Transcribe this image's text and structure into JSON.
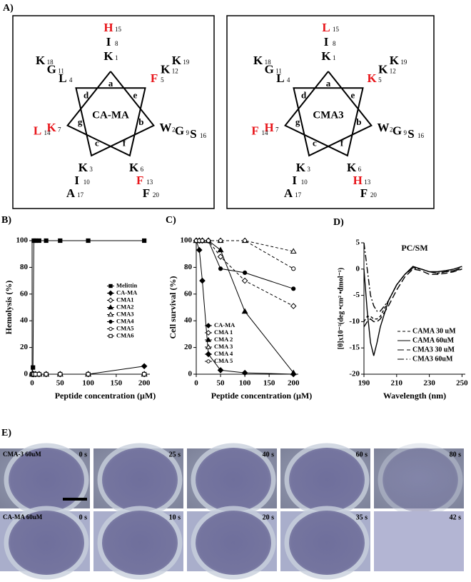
{
  "panel_labels": {
    "A": "A)",
    "E": "E)"
  },
  "wheels": [
    {
      "center_label": "CA-MA",
      "positions": [
        {
          "heptad": "a",
          "residues": [
            {
              "letter": "K",
              "number": 1,
              "color": "#000000"
            },
            {
              "letter": "I",
              "number": 8,
              "color": "#000000"
            },
            {
              "letter": "H",
              "number": 15,
              "color": "#e8161b"
            }
          ]
        },
        {
          "heptad": "e",
          "residues": [
            {
              "letter": "F",
              "number": 5,
              "color": "#e8161b"
            },
            {
              "letter": "K",
              "number": 12,
              "color": "#000000"
            },
            {
              "letter": "K",
              "number": 19,
              "color": "#000000"
            }
          ]
        },
        {
          "heptad": "b",
          "residues": [
            {
              "letter": "W",
              "number": 2,
              "color": "#000000"
            },
            {
              "letter": "G",
              "number": 9,
              "color": "#000000"
            },
            {
              "letter": "S",
              "number": 16,
              "color": "#000000"
            }
          ]
        },
        {
          "heptad": "f",
          "residues": [
            {
              "letter": "K",
              "number": 6,
              "color": "#000000"
            },
            {
              "letter": "F",
              "number": 13,
              "color": "#e8161b"
            },
            {
              "letter": "F",
              "number": 20,
              "color": "#000000"
            }
          ]
        },
        {
          "heptad": "c",
          "residues": [
            {
              "letter": "K",
              "number": 3,
              "color": "#000000"
            },
            {
              "letter": "I",
              "number": 10,
              "color": "#000000"
            },
            {
              "letter": "A",
              "number": 17,
              "color": "#000000"
            }
          ]
        },
        {
          "heptad": "g",
          "residues": [
            {
              "letter": "K",
              "number": 7,
              "color": "#e8161b"
            },
            {
              "letter": "L",
              "number": 14,
              "color": "#e8161b"
            }
          ]
        },
        {
          "heptad": "d",
          "residues": [
            {
              "letter": "L",
              "number": 4,
              "color": "#000000"
            },
            {
              "letter": "G",
              "number": 11,
              "color": "#000000"
            },
            {
              "letter": "K",
              "number": 18,
              "color": "#000000"
            }
          ]
        }
      ]
    },
    {
      "center_label": "CMA3",
      "positions": [
        {
          "heptad": "a",
          "residues": [
            {
              "letter": "K",
              "number": 1,
              "color": "#000000"
            },
            {
              "letter": "I",
              "number": 8,
              "color": "#000000"
            },
            {
              "letter": "L",
              "number": 15,
              "color": "#e8161b"
            }
          ]
        },
        {
          "heptad": "e",
          "residues": [
            {
              "letter": "K",
              "number": 5,
              "color": "#e8161b"
            },
            {
              "letter": "K",
              "number": 12,
              "color": "#000000"
            },
            {
              "letter": "K",
              "number": 19,
              "color": "#000000"
            }
          ]
        },
        {
          "heptad": "b",
          "residues": [
            {
              "letter": "W",
              "number": 2,
              "color": "#000000"
            },
            {
              "letter": "G",
              "number": 9,
              "color": "#000000"
            },
            {
              "letter": "S",
              "number": 16,
              "color": "#000000"
            }
          ]
        },
        {
          "heptad": "f",
          "residues": [
            {
              "letter": "K",
              "number": 6,
              "color": "#000000"
            },
            {
              "letter": "H",
              "number": 13,
              "color": "#e8161b"
            },
            {
              "letter": "F",
              "number": 20,
              "color": "#000000"
            }
          ]
        },
        {
          "heptad": "c",
          "residues": [
            {
              "letter": "K",
              "number": 3,
              "color": "#000000"
            },
            {
              "letter": "I",
              "number": 10,
              "color": "#000000"
            },
            {
              "letter": "A",
              "number": 17,
              "color": "#000000"
            }
          ]
        },
        {
          "heptad": "g",
          "residues": [
            {
              "letter": "H",
              "number": 7,
              "color": "#e8161b"
            },
            {
              "letter": "F",
              "number": 14,
              "color": "#e8161b"
            }
          ]
        },
        {
          "heptad": "d",
          "residues": [
            {
              "letter": "L",
              "number": 4,
              "color": "#000000"
            },
            {
              "letter": "G",
              "number": 11,
              "color": "#000000"
            },
            {
              "letter": "K",
              "number": 18,
              "color": "#000000"
            }
          ]
        }
      ]
    }
  ],
  "chart_data": [
    {
      "type": "line",
      "panel_label": "B)",
      "ylabel": "Hemolysis (%)",
      "xlabel": "Peptide concentration (µM)",
      "x": [
        0,
        1.5,
        3,
        6,
        12.5,
        25,
        50,
        100,
        200
      ],
      "xlim": [
        0,
        210
      ],
      "xticks": [
        0,
        50,
        100,
        150,
        200
      ],
      "ylim": [
        0,
        100
      ],
      "yticks": [
        0,
        20,
        40,
        60,
        80,
        100
      ],
      "legend": "center right",
      "series": [
        {
          "name": "Melittin",
          "color": "#000000",
          "marker": "square",
          "filled": true,
          "dash": "solid",
          "values": [
            0,
            5,
            100,
            100,
            100,
            100,
            100,
            100,
            100
          ]
        },
        {
          "name": "CA-MA",
          "color": "#000000",
          "marker": "diamond",
          "filled": true,
          "dash": "solid",
          "values": [
            0,
            0,
            0,
            0,
            0,
            0,
            0,
            0,
            6
          ]
        },
        {
          "name": "CMA1",
          "color": "#000000",
          "marker": "diamond",
          "filled": false,
          "dash": "solid",
          "values": [
            0,
            0,
            0,
            0,
            0,
            0,
            0,
            0,
            0
          ]
        },
        {
          "name": "CMA2",
          "color": "#000000",
          "marker": "triangle",
          "filled": true,
          "dash": "solid",
          "values": [
            0,
            0,
            0,
            0,
            0,
            0,
            0,
            0,
            0
          ]
        },
        {
          "name": "CMA3",
          "color": "#000000",
          "marker": "triangle",
          "filled": false,
          "dash": "solid",
          "values": [
            0,
            0,
            0,
            0,
            0,
            0,
            0,
            0,
            0
          ]
        },
        {
          "name": "CMA4",
          "color": "#000000",
          "marker": "circle",
          "filled": true,
          "dash": "solid",
          "values": [
            0,
            0,
            0,
            0,
            0,
            0,
            0,
            0,
            0
          ]
        },
        {
          "name": "CMA5",
          "color": "#000000",
          "marker": "circle",
          "filled": false,
          "dash": "solid",
          "values": [
            0,
            0,
            0,
            0,
            0,
            0,
            0,
            0,
            0
          ]
        },
        {
          "name": "CMA6",
          "color": "#000000",
          "marker": "square",
          "filled": false,
          "dash": "solid",
          "values": [
            0,
            0,
            0,
            0,
            0,
            0,
            0,
            0,
            0
          ]
        }
      ]
    },
    {
      "type": "line",
      "panel_label": "C)",
      "ylabel": "Cell survival (%)",
      "xlabel": "Peptide concentration (µM)",
      "x": [
        0,
        6.25,
        12.5,
        25,
        50,
        100,
        200
      ],
      "xlim": [
        0,
        210
      ],
      "xticks": [
        0,
        50,
        100,
        150,
        200
      ],
      "ylim": [
        0,
        100
      ],
      "yticks": [
        0,
        20,
        40,
        60,
        80,
        100
      ],
      "legend": "lower left",
      "series": [
        {
          "name": "CA-MA",
          "color": "#000000",
          "marker": "diamond",
          "filled": true,
          "dash": "solid",
          "values": [
            100,
            93,
            70,
            15,
            3,
            1,
            0
          ]
        },
        {
          "name": "CMA 1",
          "color": "#000000",
          "marker": "diamond",
          "filled": false,
          "dash": "dashed",
          "values": [
            100,
            100,
            100,
            100,
            88,
            70,
            51
          ]
        },
        {
          "name": "CMA 2",
          "color": "#000000",
          "marker": "triangle",
          "filled": true,
          "dash": "solid",
          "values": [
            100,
            100,
            100,
            100,
            93,
            47,
            1
          ]
        },
        {
          "name": "CMA 3",
          "color": "#000000",
          "marker": "triangle",
          "filled": false,
          "dash": "dashed",
          "values": [
            100,
            100,
            100,
            100,
            100,
            100,
            92
          ]
        },
        {
          "name": "CMA 4",
          "color": "#000000",
          "marker": "circle",
          "filled": true,
          "dash": "solid",
          "values": [
            100,
            100,
            100,
            100,
            79,
            76,
            64
          ]
        },
        {
          "name": "CMA 5",
          "color": "#000000",
          "marker": "circle",
          "filled": false,
          "dash": "dashed",
          "values": [
            100,
            100,
            100,
            100,
            100,
            100,
            79
          ]
        }
      ]
    },
    {
      "type": "line",
      "panel_label": "D)",
      "title": "PC/SM",
      "ylabel": "[θ]x10⁻³(deg •cm² •dmol⁻¹)",
      "xlabel": "Wavelength (nm)",
      "x": [
        190,
        192,
        194,
        196,
        198,
        200,
        205,
        210,
        215,
        220,
        225,
        230,
        235,
        240,
        245,
        250
      ],
      "xlim": [
        190,
        252
      ],
      "xticks": [
        190,
        210,
        230,
        250
      ],
      "ylim": [
        -20,
        5
      ],
      "yticks": [
        5,
        0,
        -5,
        -10,
        -15,
        -20
      ],
      "legend": "lower right",
      "series": [
        {
          "name": "CAMA 30 uM",
          "color": "#000000",
          "dash": "dashed",
          "values": [
            -10,
            -9,
            -9,
            -9.5,
            -9.5,
            -9,
            -6,
            -3,
            -1,
            0.3,
            0,
            -0.5,
            -0.8,
            -0.5,
            -0.3,
            0
          ]
        },
        {
          "name": "CAMA 60uM",
          "color": "#000000",
          "dash": "solid",
          "values": [
            0,
            -8,
            -14,
            -16.5,
            -14,
            -11,
            -6,
            -3,
            -1,
            0.5,
            0,
            -0.5,
            -0.5,
            -0.3,
            0,
            0.5
          ]
        },
        {
          "name": "CMA3 30 uM",
          "color": "#000000",
          "dash": "longdash",
          "values": [
            -11,
            -10,
            -9.5,
            -10,
            -10,
            -9.5,
            -7,
            -4,
            -1.5,
            0,
            -0.3,
            -1,
            -1,
            -0.8,
            -0.5,
            0
          ]
        },
        {
          "name": "CMA3 60uM",
          "color": "#000000",
          "dash": "dashdot",
          "values": [
            5,
            0,
            -5,
            -7,
            -8,
            -8,
            -6,
            -3,
            -1,
            0.2,
            0,
            -0.5,
            -0.8,
            -0.5,
            -0.3,
            0.3
          ]
        }
      ]
    }
  ],
  "micrographs": {
    "rows": [
      {
        "label": "CMA-3 60uM",
        "times": [
          "0 s",
          "25 s",
          "40 s",
          "60 s",
          "80 s"
        ]
      },
      {
        "label": "CA-MA 60uM",
        "times": [
          "0 s",
          "10 s",
          "20 s",
          "35 s",
          "42 s"
        ]
      }
    ]
  }
}
